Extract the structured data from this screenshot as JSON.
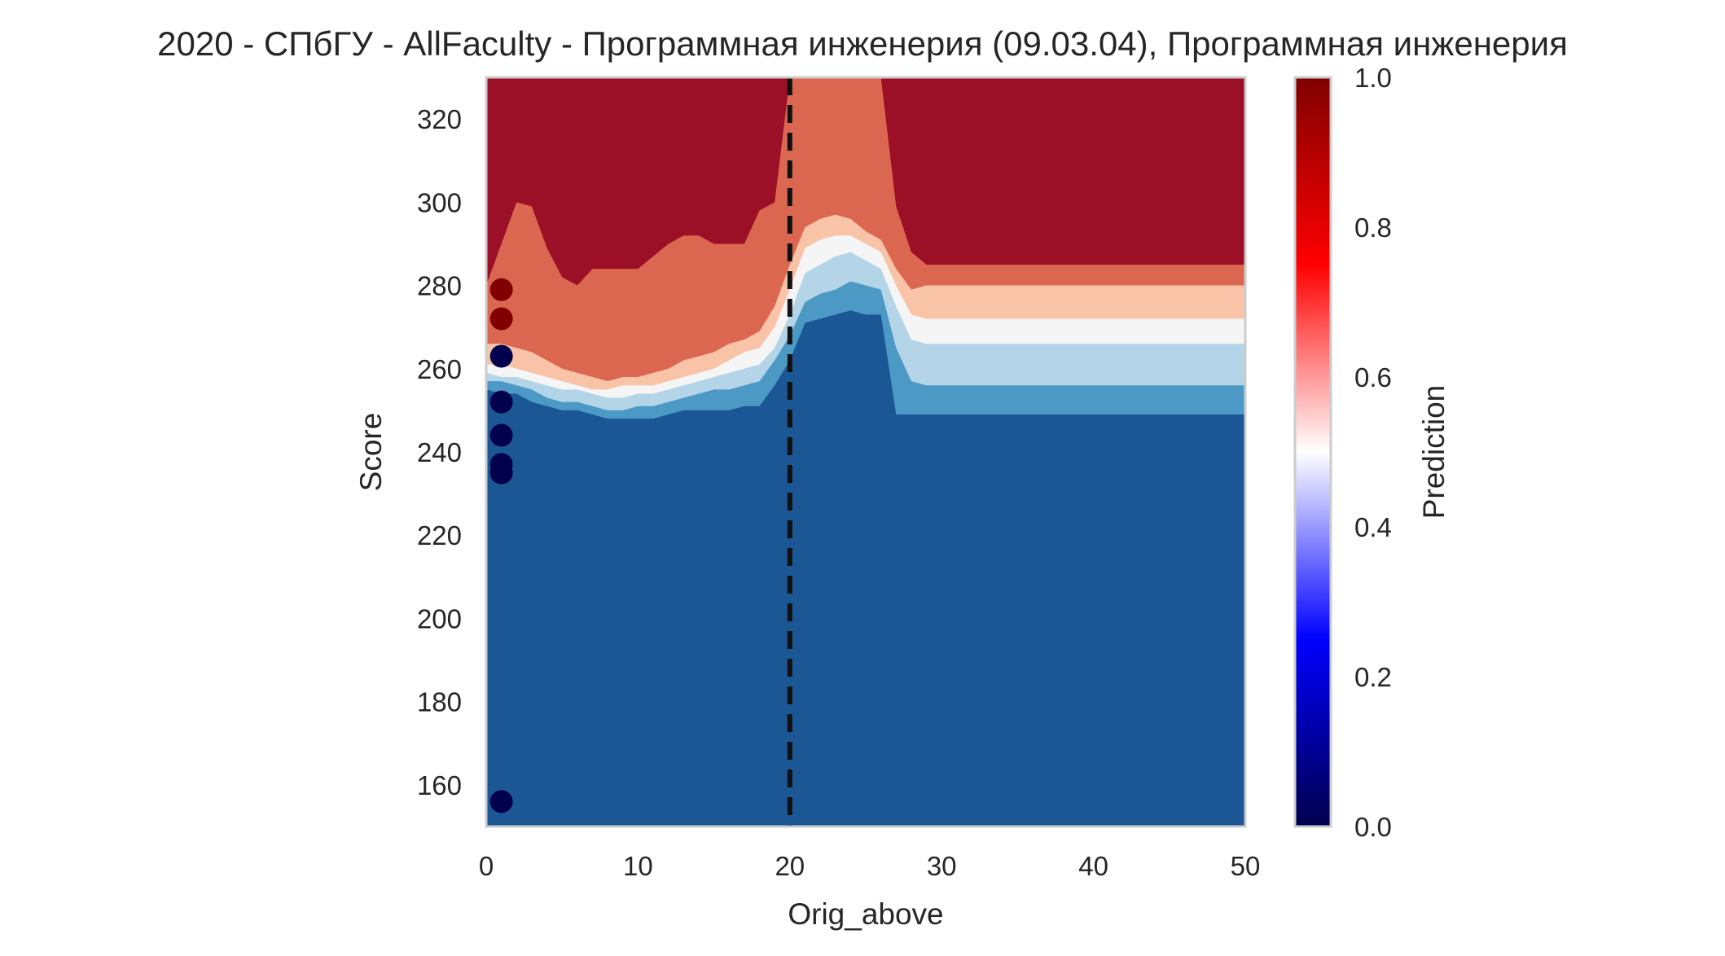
{
  "chart_data": {
    "type": "heatmap",
    "title": "2020 - СПбГУ - AllFaculty - Программная инженерия (09.03.04), Программная инженерия",
    "xlabel": "Orig_above",
    "ylabel": "Score",
    "xlim": [
      0,
      50
    ],
    "ylim": [
      150,
      330
    ],
    "x_ticks": [
      "0",
      "10",
      "20",
      "30",
      "40",
      "50"
    ],
    "y_ticks": [
      "160",
      "180",
      "200",
      "220",
      "240",
      "260",
      "280",
      "300",
      "320"
    ],
    "grid": false,
    "reference_line": {
      "x": 20,
      "style": "dashed",
      "color": "#111111"
    },
    "contour_levels": [
      {
        "range": [
          0.0,
          0.15
        ],
        "color": "#1b5695"
      },
      {
        "range": [
          0.15,
          0.3
        ],
        "color": "#4c99c6"
      },
      {
        "range": [
          0.3,
          0.45
        ],
        "color": "#b4d5e8"
      },
      {
        "range": [
          0.45,
          0.6
        ],
        "color": "#f5f5f5"
      },
      {
        "range": [
          0.6,
          0.75
        ],
        "color": "#f9c3a8"
      },
      {
        "range": [
          0.75,
          0.9
        ],
        "color": "#dc6751"
      },
      {
        "range": [
          0.9,
          1.0
        ],
        "color": "#9b0f27"
      }
    ],
    "surface_boundaries": {
      "x": [
        0,
        1,
        2,
        3,
        4,
        5,
        6,
        7,
        8,
        9,
        10,
        11,
        12,
        13,
        14,
        15,
        16,
        17,
        18,
        19,
        20,
        21,
        22,
        23,
        24,
        25,
        26,
        27,
        28,
        29,
        30,
        33,
        36,
        40,
        44,
        47,
        50
      ],
      "b_0_15": [
        255,
        254,
        254,
        252,
        251,
        250,
        250,
        249,
        248,
        248,
        248,
        248,
        249,
        250,
        250,
        250,
        250,
        251,
        251,
        256,
        262,
        271,
        272,
        273,
        274,
        273,
        273,
        249,
        249,
        249,
        249,
        249,
        249,
        249,
        249,
        249,
        249
      ],
      "b_15_30": [
        257,
        257,
        256,
        255,
        253,
        252,
        252,
        251,
        250,
        250,
        251,
        251,
        252,
        253,
        254,
        255,
        255,
        256,
        257,
        262,
        268,
        276,
        278,
        279,
        281,
        280,
        279,
        265,
        257,
        256,
        256,
        256,
        256,
        256,
        256,
        256,
        256
      ],
      "b_30_45": [
        259,
        258,
        258,
        257,
        256,
        255,
        255,
        254,
        253,
        253,
        254,
        254,
        255,
        256,
        257,
        258,
        259,
        260,
        261,
        265,
        273,
        283,
        285,
        287,
        288,
        286,
        284,
        275,
        267,
        266,
        266,
        266,
        266,
        266,
        266,
        266,
        266
      ],
      "b_45_60": [
        261,
        261,
        260,
        259,
        258,
        257,
        256,
        255,
        255,
        256,
        256,
        256,
        257,
        258,
        259,
        260,
        262,
        264,
        265,
        270,
        279,
        289,
        291,
        292,
        292,
        290,
        288,
        280,
        273,
        272,
        272,
        272,
        272,
        272,
        272,
        272,
        272
      ],
      "b_60_75": [
        266,
        266,
        265,
        264,
        262,
        260,
        259,
        258,
        257,
        258,
        258,
        259,
        260,
        262,
        263,
        264,
        266,
        267,
        269,
        275,
        285,
        294,
        296,
        297,
        296,
        293,
        291,
        284,
        279,
        280,
        280,
        280,
        280,
        280,
        280,
        280,
        280
      ],
      "b_75_90": [
        280,
        290,
        300,
        299,
        289,
        282,
        280,
        284,
        284,
        284,
        284,
        287,
        290,
        292,
        292,
        290,
        290,
        290,
        298,
        300,
        330,
        330,
        330,
        330,
        330,
        330,
        330,
        299,
        288,
        285,
        285,
        285,
        285,
        285,
        285,
        285,
        285
      ]
    },
    "points": [
      {
        "x": 1,
        "y": 279,
        "value": 1.0
      },
      {
        "x": 1,
        "y": 272,
        "value": 1.0
      },
      {
        "x": 1,
        "y": 263,
        "value": 0.0
      },
      {
        "x": 1,
        "y": 252,
        "value": 0.0
      },
      {
        "x": 1,
        "y": 244,
        "value": 0.0
      },
      {
        "x": 1,
        "y": 237,
        "value": 0.0
      },
      {
        "x": 1,
        "y": 235,
        "value": 0.0
      },
      {
        "x": 1,
        "y": 156,
        "value": 0.0
      }
    ],
    "colorbar": {
      "label": "Prediction",
      "ticks": [
        "0.0",
        "0.2",
        "0.4",
        "0.6",
        "0.8",
        "1.0"
      ],
      "colormap": [
        "#00004c",
        "#0000ff",
        "#ffffff",
        "#ff0000",
        "#800000"
      ]
    }
  }
}
